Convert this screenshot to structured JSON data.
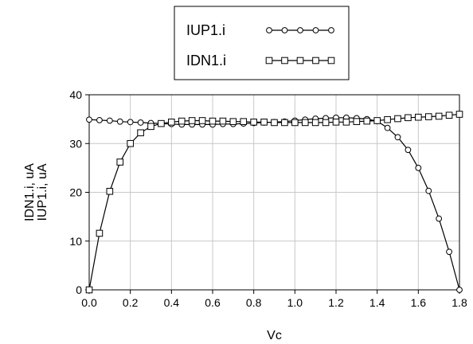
{
  "chart_data": {
    "type": "line",
    "xlabel": "Vc",
    "ylabel_lines": [
      "IDN1.i, uA",
      "IUP1.i, uA"
    ],
    "xlim": [
      0.0,
      1.8
    ],
    "ylim": [
      0,
      40
    ],
    "x_ticks": [
      "0.0",
      "0.2",
      "0.4",
      "0.6",
      "0.8",
      "1.0",
      "1.2",
      "1.4",
      "1.6",
      "1.8"
    ],
    "y_ticks": [
      "0",
      "10",
      "20",
      "30",
      "40"
    ],
    "grid": true,
    "legend_position": "top-center",
    "series": [
      {
        "name": "IUP1.i",
        "marker": "circle",
        "color": "#000000",
        "x": [
          0.0,
          0.05,
          0.1,
          0.15,
          0.2,
          0.25,
          0.3,
          0.35,
          0.4,
          0.45,
          0.5,
          0.55,
          0.6,
          0.65,
          0.7,
          0.75,
          0.8,
          0.85,
          0.9,
          0.95,
          1.0,
          1.05,
          1.1,
          1.15,
          1.2,
          1.25,
          1.3,
          1.35,
          1.4,
          1.45,
          1.5,
          1.55,
          1.6,
          1.65,
          1.7,
          1.75,
          1.8
        ],
        "y": [
          34.9,
          34.8,
          34.7,
          34.5,
          34.4,
          34.3,
          34.2,
          34.1,
          34.0,
          33.9,
          33.9,
          33.9,
          33.9,
          34.0,
          34.0,
          34.1,
          34.2,
          34.3,
          34.4,
          34.5,
          34.7,
          34.9,
          35.1,
          35.2,
          35.3,
          35.3,
          35.2,
          35.0,
          34.6,
          33.2,
          31.3,
          28.7,
          25.0,
          20.3,
          14.6,
          7.8,
          0.0
        ]
      },
      {
        "name": "IDN1.i",
        "marker": "square",
        "color": "#000000",
        "x": [
          0.0,
          0.05,
          0.1,
          0.15,
          0.2,
          0.25,
          0.3,
          0.35,
          0.4,
          0.45,
          0.5,
          0.55,
          0.6,
          0.65,
          0.7,
          0.75,
          0.8,
          0.85,
          0.9,
          0.95,
          1.0,
          1.05,
          1.1,
          1.15,
          1.2,
          1.25,
          1.3,
          1.35,
          1.4,
          1.45,
          1.5,
          1.55,
          1.6,
          1.65,
          1.7,
          1.75,
          1.8
        ],
        "y": [
          0.0,
          11.6,
          20.2,
          26.2,
          30.0,
          32.2,
          33.5,
          34.1,
          34.4,
          34.6,
          34.7,
          34.7,
          34.6,
          34.6,
          34.5,
          34.5,
          34.4,
          34.4,
          34.3,
          34.3,
          34.3,
          34.3,
          34.3,
          34.3,
          34.4,
          34.4,
          34.5,
          34.6,
          34.7,
          34.9,
          35.1,
          35.3,
          35.4,
          35.5,
          35.6,
          35.8,
          36.0
        ]
      }
    ]
  }
}
